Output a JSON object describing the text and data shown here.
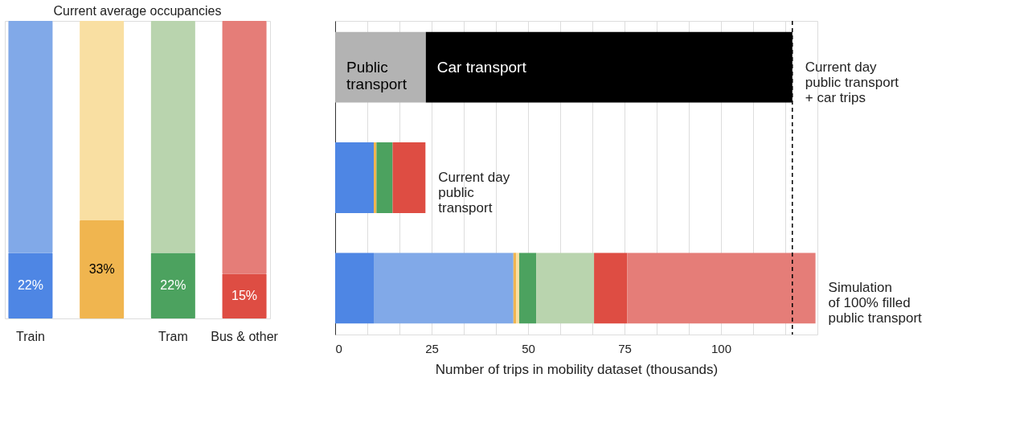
{
  "chart_data": [
    {
      "type": "bar",
      "title": "Current average occupancies",
      "categories": [
        "Train",
        null,
        "Tram",
        "Bus & other"
      ],
      "stacked": true,
      "series": [
        {
          "colors": [
            "#4e86e4",
            "#f0b54f",
            "#4ca25f",
            "#de4d43"
          ],
          "values": [
            22,
            33,
            22,
            15
          ],
          "value_labels": [
            "22%",
            "33%",
            "22%",
            "15%"
          ]
        },
        {
          "colors": [
            "#81a9e8",
            "#f9dfa2",
            "#b9d4ae",
            "#e57d78"
          ],
          "values": [
            78,
            67,
            78,
            85
          ]
        }
      ]
    },
    {
      "type": "bar",
      "orientation": "horizontal",
      "stacked": true,
      "categories": [
        null,
        null,
        null
      ],
      "xlabel": "Number of trips in mobility dataset (thousands)",
      "xlim": [
        0,
        125
      ],
      "xticks": [
        0,
        {
          "value": 8.33,
          "label": null
        },
        {
          "value": 16.67,
          "label": null
        },
        25,
        {
          "value": 33.33,
          "label": null
        },
        {
          "value": 41.67,
          "label": null
        },
        50,
        {
          "value": 58.33,
          "label": null
        },
        {
          "value": 66.67,
          "label": null
        },
        75,
        {
          "value": 83.33,
          "label": null
        },
        {
          "value": 91.67,
          "label": null
        },
        100,
        {
          "value": 108.33,
          "label": null
        },
        {
          "value": 116.67,
          "label": null
        }
      ],
      "grid": "x",
      "series": [
        {
          "name": "Public\ntransport",
          "color": "#b3b3b3",
          "values": [
            23.5,
            null,
            null
          ]
        },
        {
          "name": "Car transport",
          "color": "#000000",
          "values": [
            95.0,
            null,
            null
          ]
        },
        {
          "color": "#4e86e4",
          "values": [
            null,
            10.0,
            10.0
          ]
        },
        {
          "color": "#81a9e8",
          "values": [
            null,
            null,
            36.2
          ]
        },
        {
          "color": "#f0b54f",
          "values": [
            null,
            0.7,
            0.7
          ]
        },
        {
          "color": "#f9dfa2",
          "values": [
            null,
            null,
            0.8
          ]
        },
        {
          "color": "#4ca25f",
          "values": [
            null,
            4.2,
            4.4
          ]
        },
        {
          "color": "#b9d4ae",
          "values": [
            null,
            null,
            15.0
          ]
        },
        {
          "color": "#de4d43",
          "values": [
            null,
            8.5,
            8.6
          ]
        },
        {
          "color": "#e57d78",
          "values": [
            null,
            null,
            48.8
          ]
        }
      ],
      "ref_lines": [
        {
          "axis": "x",
          "value": 118.5,
          "line_style": "dashed",
          "color": "#000000"
        }
      ],
      "annotations": [
        {
          "text": "Current day\npublic transport\n+ car trips",
          "x": 118.5
        },
        {
          "text": "Current day\npublic\ntransport",
          "x": 23.4
        },
        {
          "text": "Simulation\nof 100% filled\npublic transport",
          "x": 124.5
        }
      ]
    }
  ]
}
